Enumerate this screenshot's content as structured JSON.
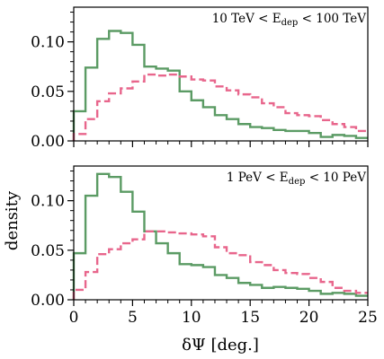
{
  "chart_data": {
    "type": "step",
    "ylabel": "density",
    "xlabel": "δΨ [deg.]",
    "shared_x": {
      "bin_width": 1,
      "xlim": [
        0,
        25
      ],
      "xticks": [
        0,
        5,
        10,
        15,
        20,
        25
      ]
    },
    "panels": [
      {
        "annotation": {
          "pre": "10 TeV < E",
          "sub": "dep",
          "post": " < 100 TeV"
        },
        "ylim": [
          0,
          0.135
        ],
        "yticks": [
          0.0,
          0.05,
          0.1
        ],
        "ytick_labels": [
          "0.00",
          "0.05",
          "0.10"
        ],
        "series": [
          {
            "color": "#5b9b64",
            "style": "solid",
            "values": [
              0.03,
              0.074,
              0.103,
              0.111,
              0.109,
              0.097,
              0.075,
              0.073,
              0.071,
              0.05,
              0.041,
              0.034,
              0.026,
              0.022,
              0.017,
              0.014,
              0.013,
              0.011,
              0.01,
              0.01,
              0.008,
              0.004,
              0.006,
              0.005,
              0.003
            ]
          },
          {
            "color": "#e8668c",
            "style": "dashed",
            "values": [
              0.007,
              0.022,
              0.04,
              0.048,
              0.053,
              0.06,
              0.067,
              0.066,
              0.067,
              0.065,
              0.062,
              0.061,
              0.055,
              0.051,
              0.047,
              0.044,
              0.038,
              0.034,
              0.028,
              0.026,
              0.025,
              0.021,
              0.017,
              0.014,
              0.01
            ]
          }
        ]
      },
      {
        "annotation": {
          "pre": "1 PeV < E",
          "sub": "dep",
          "post": " < 10 PeV"
        },
        "ylim": [
          0,
          0.135
        ],
        "yticks": [
          0.0,
          0.05,
          0.1
        ],
        "ytick_labels": [
          "0.00",
          "0.05",
          "0.10"
        ],
        "series": [
          {
            "color": "#5b9b64",
            "style": "solid",
            "values": [
              0.047,
              0.105,
              0.127,
              0.124,
              0.109,
              0.089,
              0.069,
              0.057,
              0.047,
              0.036,
              0.035,
              0.033,
              0.025,
              0.022,
              0.017,
              0.015,
              0.012,
              0.013,
              0.012,
              0.011,
              0.009,
              0.006,
              0.007,
              0.006,
              0.004
            ]
          },
          {
            "color": "#e8668c",
            "style": "dashed",
            "values": [
              0.01,
              0.028,
              0.046,
              0.051,
              0.057,
              0.061,
              0.069,
              0.069,
              0.068,
              0.067,
              0.066,
              0.064,
              0.053,
              0.047,
              0.045,
              0.038,
              0.035,
              0.03,
              0.027,
              0.026,
              0.022,
              0.018,
              0.012,
              0.009,
              0.007
            ]
          }
        ]
      }
    ]
  }
}
